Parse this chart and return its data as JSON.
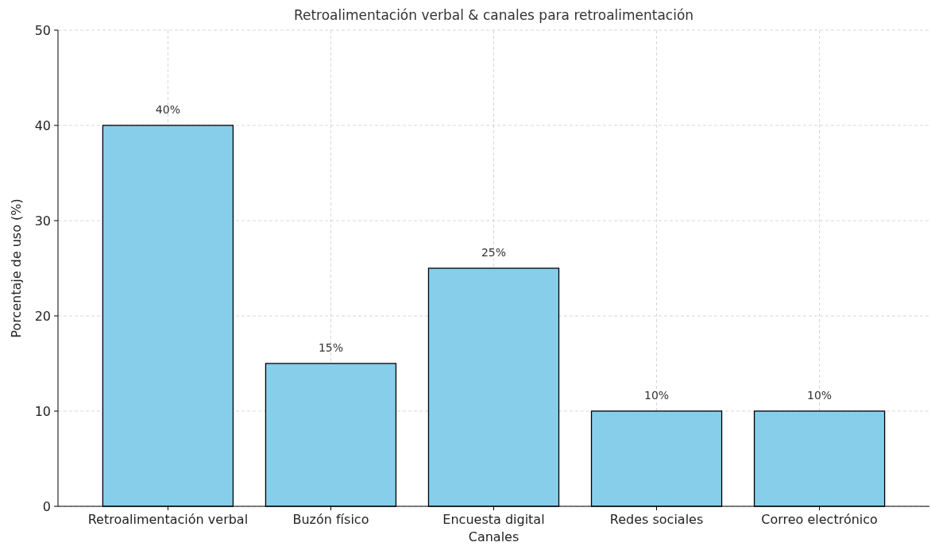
{
  "chart_data": {
    "type": "bar",
    "title": "Retroalimentación verbal & canales para retroalimentación",
    "xlabel": "Canales",
    "ylabel": "Porcentaje de uso (%)",
    "categories": [
      "Retroalimentación verbal",
      "Buzón físico",
      "Encuesta digital",
      "Redes sociales",
      "Correo electrónico"
    ],
    "values": [
      40,
      15,
      25,
      10,
      10
    ],
    "value_labels": [
      "40%",
      "15%",
      "25%",
      "10%",
      "10%"
    ],
    "color": "#87ceeb",
    "ylim": [
      0,
      50
    ],
    "yticks": [
      0,
      10,
      20,
      30,
      40,
      50
    ],
    "grid": true
  }
}
